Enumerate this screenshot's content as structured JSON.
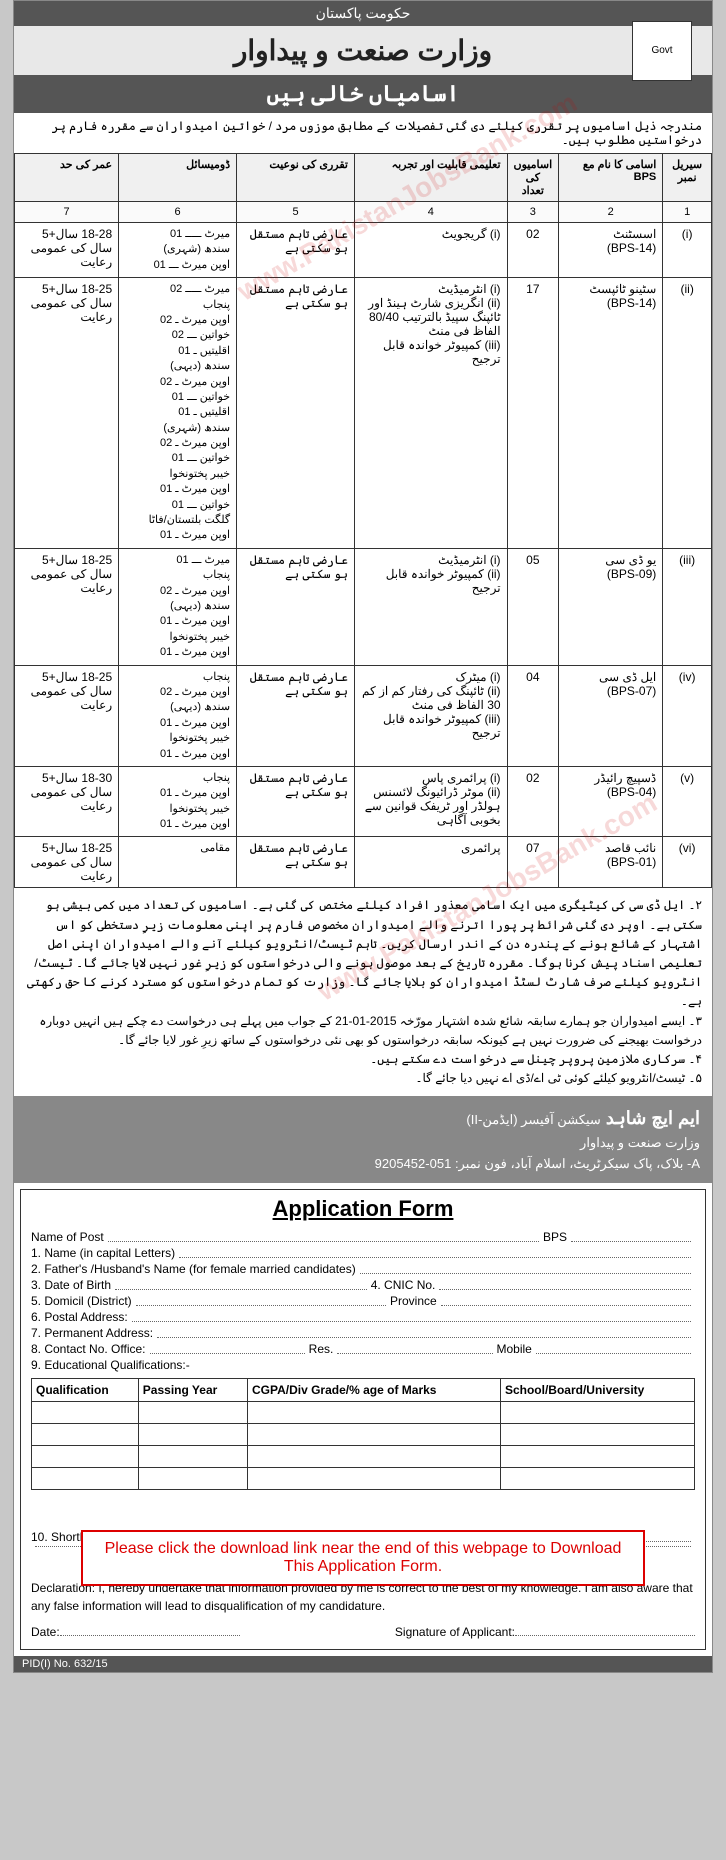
{
  "header": {
    "top": "حکومت پاکستان",
    "middle": "وزارت صنعت و پیداوار",
    "bottom": "اسامیاں خالی ہیں",
    "logo_alt": "Govt"
  },
  "intro": "مندرجہ ذیل اسامیوں پر تقرری کیلئے دی گئی تفصیلات کے مطابق موزوں مرد / خواتین امیدواران سے مقررہ فارم پر درخواستیں مطلوب ہیں۔",
  "table": {
    "headers": {
      "sr": "سیریل نمبر",
      "name": "اسامی کا نام مع BPS",
      "count": "اسامیوں کی تعداد",
      "qual": "تعلیمی قابلیت اور تجربہ",
      "type": "تقرری کی نوعیت",
      "dom": "ڈومیسائل",
      "age": "عمر کی حد"
    },
    "numrow": [
      "1",
      "2",
      "3",
      "4",
      "5",
      "6",
      "7"
    ],
    "rows": [
      {
        "sr": "(i)",
        "name": "اسسٹنٹ\n(BPS-14)",
        "count": "02",
        "qual": "(i) گریجویٹ",
        "type": "عارضی تاہم مستقل ہو سکتی ہے",
        "dom": "میرٹ ـــــ 01\nسندھ (شہری)\nاوپن میرٹ ـــ 01",
        "age": "18-28 سال+5 سال کی عمومی رعایت"
      },
      {
        "sr": "(ii)",
        "name": "سٹینو ٹائپسٹ\n(BPS-14)",
        "count": "17",
        "qual": "(i) انٹرمیڈیٹ\n(ii) انگریزی شارٹ ہینڈ اور ٹائپنگ سپیڈ بالترتیب 80/40 الفاظ فی منٹ\n(iii) کمپیوٹر خواندہ قابل ترجیح",
        "type": "عارضی تاہم مستقل ہو سکتی ہے",
        "dom": "میرٹ ـــــ 02\nپنجاب\nاوپن میرٹ ـ 02\nخواتین ـــ 02\nاقلیتیں ـ 01\nسندھ (دیہی)\nاوپن میرٹ ـ 02\nخواتین ـــ 01\nاقلیتیں ـ 01\nسندھ (شہری)\nاوپن میرٹ ـ 02\nخواتین ـــ 01\nخیبر پختونخوا\nاوپن میرٹ ـ 01\nخواتین ـــ 01\nگلگت بلتستان/فاٹا\nاوپن میرٹ ـ 01",
        "age": "18-25 سال+5 سال کی عمومی رعایت"
      },
      {
        "sr": "(iii)",
        "name": "یو ڈی سی\n(BPS-09)",
        "count": "05",
        "qual": "(i) انٹرمیڈیٹ\n(ii) کمپیوٹر خواندہ قابل ترجیح",
        "type": "عارضی تاہم مستقل ہو سکتی ہے",
        "dom": "میرٹ ـــ 01\nپنجاب\nاوپن میرٹ ـ 02\nسندھ (دیہی)\nاوپن میرٹ ـ 01\nخیبر پختونخوا\nاوپن میرٹ ـ 01",
        "age": "18-25 سال+5 سال کی عمومی رعایت"
      },
      {
        "sr": "(iv)",
        "name": "ایل ڈی سی\n(BPS-07)",
        "count": "04",
        "qual": "(i) میٹرک\n(ii) ٹائپنگ کی رفتار کم از کم 30 الفاظ فی منٹ\n(iii) کمپیوٹر خواندہ قابل ترجیح",
        "type": "عارضی تاہم مستقل ہو سکتی ہے",
        "dom": "پنجاب\nاوپن میرٹ ـ 02\nسندھ (دیہی)\nاوپن میرٹ ـ 01\nخیبر پختونخوا\nاوپن میرٹ ـ 01",
        "age": "18-25 سال+5 سال کی عمومی رعایت"
      },
      {
        "sr": "(v)",
        "name": "ڈسپیچ رائیڈر\n(BPS-04)",
        "count": "02",
        "qual": "(i) پرائمری پاس\n(ii) موٹر ڈرائیونگ لائسنس ہولڈر اور ٹریفک قوانین سے بخوبی آگاہی",
        "type": "عارضی تاہم مستقل ہو سکتی ہے",
        "dom": "پنجاب\nاوپن میرٹ ـ 01\nخیبر پختونخوا\nاوپن میرٹ ـ 01",
        "age": "18-30 سال+5 سال کی عمومی رعایت"
      },
      {
        "sr": "(vi)",
        "name": "نائب قاصد\n(BPS-01)",
        "count": "07",
        "qual": "پرائمری",
        "type": "عارضی تاہم مستقل ہو سکتی ہے",
        "dom": "مقامی",
        "age": "18-25 سال+5 سال کی عمومی رعایت"
      }
    ]
  },
  "notes": [
    "۲۔ ایل ڈی سی کی کیٹیگری میں ایک اسامی معذور افراد کیلئے مختص کی گئی ہے۔ اسامیوں کی تعداد میں کمی بیشی ہو سکتی ہے۔ اوپر دی گئی شرائط پر پورا اترنے والے امیدواران مخصوص فارم پر اپنی معلومات زیرِ دستخطی کو اس اشتہار کے شائع ہونے کے پندرہ دن کے اندر ارسال کریں۔ تاہم ٹیسٹ/انٹرویو کیلئے آنے والے امیدواران اپنی اصل تعلیمی اسناد پیش کرنا ہوگا۔ مقررہ تاریخ کے بعد موصول ہونے والی درخواستوں کو زیرِ غور نہیں لایا جائے گا۔ ٹیسٹ/انٹرویو کیلئے صرف شارٹ لسٹڈ امیدواران کو بلایا جائے گا۔ وزارت کو تمام درخواستوں کو مسترد کرنے کا حق رکھتی ہے۔",
    "۳۔ ایسے امیدواران جو ہمارے سابقہ شائع شدہ اشتہار مورّخہ 2015-01-21 کے جواب میں پہلے ہی درخواست دے چکے ہیں انہیں دوبارہ درخواست بھیجنے کی ضرورت نہیں ہے کیونکہ سابقہ درخواستوں کو بھی نئی درخواستوں کے ساتھ زیرِ غور لایا جائے گا۔",
    "۴۔ سرکاری ملازمین پروپر چینل سے درخواست دے سکتے ہیں۔",
    "۵۔ ٹیسٹ/انٹرویو کیلئے کوئی ٹی اے/ڈی اے نہیں دیا جائے گا۔"
  ],
  "signature": {
    "name": "ایم ایچ شاہد",
    "title": "سیکشن آفیسر (ایڈمن-II)",
    "dept": "وزارت صنعت و پیداوار",
    "addr": "A- بلاک، پاک سیکرٹریٹ، اسلام آباد، فون نمبر: 051-9205452"
  },
  "form": {
    "title": "Application Form",
    "fields": {
      "post": "Name of Post",
      "bps": "BPS",
      "f1": "1. Name (in capital Letters)",
      "f2": "2. Father's /Husband's Name (for female married candidates)",
      "f3": "3. Date of Birth",
      "cnic": "4. CNIC No.",
      "f5": "5. Domicil (District)",
      "province": "Province",
      "f6": "6. Postal Address:",
      "f7": "7. Permanent Address:",
      "f8": "8. Contact No. Office:",
      "res": "Res.",
      "mobile": "Mobile",
      "f9": "9. Educational Qualifications:-",
      "f10": "10. Shorthand / Typing & Computer Literacy (where applicable)"
    },
    "edu_headers": [
      "Qualification",
      "Passing Year",
      "CGPA/Div Grade/% age of Marks",
      "School/Board/University"
    ],
    "notice": "Please click the download link near the end of this webpage to Download This Application Form.",
    "declaration": "Declaration: I, hereby undertake that information provided by me is correct to the best of my knowledge. I am also aware that any false information will lead to disqualification of my candidature.",
    "date": "Date:",
    "sign": "Signature of Applicant:"
  },
  "pid": "PID(I) No. 632/15"
}
